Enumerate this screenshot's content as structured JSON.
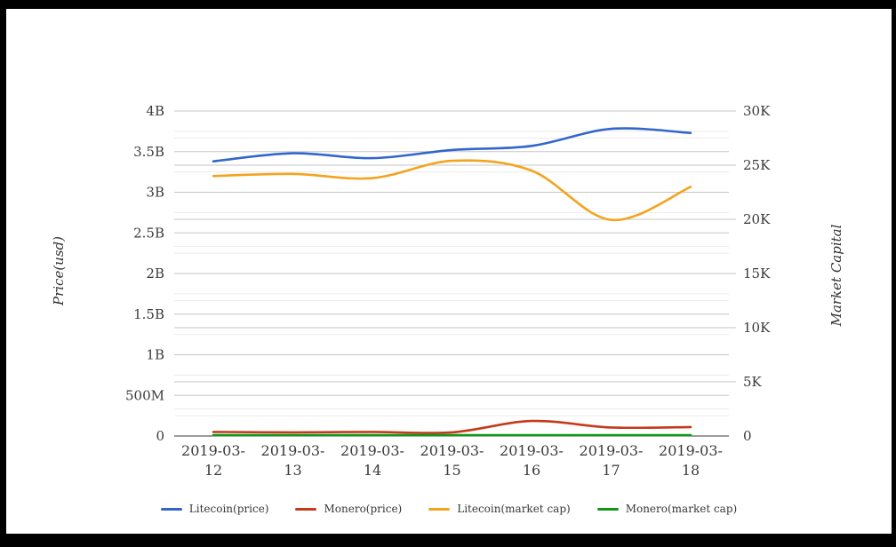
{
  "frame": {
    "background": "#ffffff",
    "border_color": "#000000"
  },
  "chart_data": {
    "type": "line",
    "title": "",
    "categories": [
      "2019-03-12",
      "2019-03-13",
      "2019-03-14",
      "2019-03-15",
      "2019-03-16",
      "2019-03-17",
      "2019-03-18"
    ],
    "series": [
      {
        "name": "Litecoin(price)",
        "color": "#3366CC",
        "axis": "left",
        "values": [
          3380000000.0,
          3480000000.0,
          3420000000.0,
          3520000000.0,
          3570000000.0,
          3780000000.0,
          3730000000.0
        ]
      },
      {
        "name": "Monero(price)",
        "color": "#C43A1B",
        "axis": "left",
        "values": [
          50000000.0,
          45000000.0,
          50000000.0,
          45000000.0,
          185000000.0,
          105000000.0,
          110000000.0
        ]
      },
      {
        "name": "Litecoin(market cap)",
        "color": "#F5A31E",
        "axis": "right",
        "values": [
          24000,
          24200,
          23800,
          25400,
          24500,
          19950,
          23000
        ]
      },
      {
        "name": "Monero(market cap)",
        "color": "#109618",
        "axis": "right",
        "values": [
          75,
          75,
          75,
          75,
          75,
          75,
          75
        ]
      }
    ],
    "left_axis": {
      "title": "Price(usd)",
      "min": 0,
      "max": 4000000000.0,
      "tick_step": 500000000.0,
      "minor_step": 250000000.0,
      "tick_labels": [
        "0",
        "500M",
        "1B",
        "1.5B",
        "2B",
        "2.5B",
        "3B",
        "3.5B",
        "4B"
      ]
    },
    "right_axis": {
      "title": "Market Capital",
      "min": 0,
      "max": 30000,
      "tick_step": 5000,
      "minor_step": 2500,
      "tick_labels": [
        "0",
        "5K",
        "10K",
        "15K",
        "20K",
        "25K",
        "30K"
      ]
    },
    "grid": true,
    "legend_position": "bottom"
  },
  "legend": {
    "items": [
      {
        "label": "Litecoin(price)",
        "color": "#3366CC"
      },
      {
        "label": "Monero(price)",
        "color": "#C43A1B"
      },
      {
        "label": "Litecoin(market cap)",
        "color": "#F5A31E"
      },
      {
        "label": "Monero(market cap)",
        "color": "#109618"
      }
    ]
  },
  "style_colors": {
    "grid_major": "#c6c6c6",
    "grid_minor": "#ebebeb",
    "baseline": "#3a3a3a",
    "tick_text": "#3a3a3a"
  }
}
